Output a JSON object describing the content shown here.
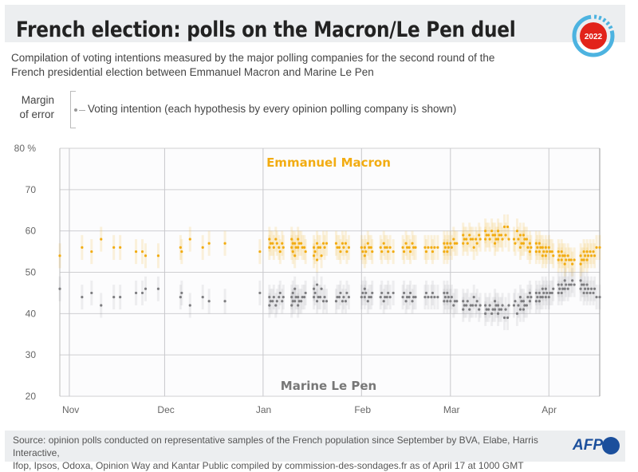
{
  "header": {
    "title": "French election: polls on the Macron/Le Pen duel",
    "logo_text": "2022",
    "subtitle_line1": "Compilation of voting intentions measured by the major polling companies for the second round of the",
    "subtitle_line2": "French presidential election between Emmanuel Macron and Marine Le Pen"
  },
  "legend": {
    "margin_label_1": "Margin",
    "margin_label_2": "of error",
    "voting_intention": "Voting intention (each hypothesis by every opinion polling company is shown)"
  },
  "footer": {
    "source_line1": "Source: opinion polls conducted on representative samples of the French population since September by BVA, Elabe, Harris Interactive,",
    "source_line2": "Ifop, Ipsos, Odoxa, Opinion Way and Kantar Public compiled by commission-des-sondages.fr as of April 17 at 1000 GMT",
    "brand": "AFP"
  },
  "colors": {
    "macron": "#f2ac12",
    "lepen": "#7d7d80",
    "header_bg": "#eceef0",
    "logo_red": "#e2231a",
    "logo_blue": "#4db3e0",
    "afp_blue": "#1b4f9c"
  },
  "chart_data": {
    "type": "scatter",
    "title": "",
    "ylim": [
      20,
      80
    ],
    "yticks": [
      20,
      30,
      40,
      50,
      60,
      70,
      80
    ],
    "ytick_labels": [
      "20",
      "30",
      "40",
      "50",
      "60",
      "70",
      "80 %"
    ],
    "xlim": [
      "2021-10-29",
      "2022-04-17"
    ],
    "xticks": [
      "2021-11-01",
      "2021-12-01",
      "2022-01-01",
      "2022-02-01",
      "2022-03-01",
      "2022-04-01"
    ],
    "xtick_labels": [
      "Nov",
      "Dec",
      "Jan",
      "Feb",
      "Mar",
      "Apr"
    ],
    "grid": true,
    "margin_of_error": 3,
    "series_labels": {
      "macron": "Emmanuel Macron",
      "lepen": "Marine Le Pen"
    },
    "polls": [
      {
        "date": "2021-10-29",
        "macron": [
          54
        ]
      },
      {
        "date": "2021-11-05",
        "macron": [
          56
        ]
      },
      {
        "date": "2021-11-08",
        "macron": [
          55
        ]
      },
      {
        "date": "2021-11-11",
        "macron": [
          58
        ]
      },
      {
        "date": "2021-11-15",
        "macron": [
          56
        ]
      },
      {
        "date": "2021-11-17",
        "macron": [
          56
        ]
      },
      {
        "date": "2021-11-22",
        "macron": [
          55
        ]
      },
      {
        "date": "2021-11-24",
        "macron": [
          55
        ]
      },
      {
        "date": "2021-11-25",
        "macron": [
          54
        ]
      },
      {
        "date": "2021-11-29",
        "macron": [
          54
        ]
      },
      {
        "date": "2021-12-06",
        "macron": [
          56,
          55
        ]
      },
      {
        "date": "2021-12-09",
        "macron": [
          58
        ]
      },
      {
        "date": "2021-12-13",
        "macron": [
          56
        ]
      },
      {
        "date": "2021-12-15",
        "macron": [
          57
        ]
      },
      {
        "date": "2021-12-20",
        "macron": [
          57
        ]
      },
      {
        "date": "2021-12-31",
        "macron": [
          55
        ]
      },
      {
        "date": "2022-01-03",
        "macron": [
          58,
          57,
          56
        ]
      },
      {
        "date": "2022-01-04",
        "macron": [
          57,
          56
        ]
      },
      {
        "date": "2022-01-05",
        "macron": [
          58,
          57
        ]
      },
      {
        "date": "2022-01-06",
        "macron": [
          56,
          55
        ]
      },
      {
        "date": "2022-01-07",
        "macron": [
          57,
          56
        ]
      },
      {
        "date": "2022-01-10",
        "macron": [
          58,
          57,
          56,
          55
        ]
      },
      {
        "date": "2022-01-11",
        "macron": [
          57,
          56,
          54
        ]
      },
      {
        "date": "2022-01-12",
        "macron": [
          58,
          57,
          56
        ]
      },
      {
        "date": "2022-01-13",
        "macron": [
          57,
          56
        ]
      },
      {
        "date": "2022-01-14",
        "macron": [
          56,
          55
        ]
      },
      {
        "date": "2022-01-17",
        "macron": [
          56,
          55,
          54
        ]
      },
      {
        "date": "2022-01-18",
        "macron": [
          57,
          56,
          53
        ]
      },
      {
        "date": "2022-01-19",
        "macron": [
          56,
          54
        ]
      },
      {
        "date": "2022-01-20",
        "macron": [
          57,
          56
        ]
      },
      {
        "date": "2022-01-21",
        "macron": [
          57
        ]
      },
      {
        "date": "2022-01-24",
        "macron": [
          57,
          56
        ]
      },
      {
        "date": "2022-01-25",
        "macron": [
          56,
          55
        ]
      },
      {
        "date": "2022-01-26",
        "macron": [
          57,
          56
        ]
      },
      {
        "date": "2022-01-27",
        "macron": [
          57,
          55
        ]
      },
      {
        "date": "2022-01-28",
        "macron": [
          56
        ]
      },
      {
        "date": "2022-02-01",
        "macron": [
          56,
          55
        ]
      },
      {
        "date": "2022-02-02",
        "macron": [
          56,
          55,
          54
        ]
      },
      {
        "date": "2022-02-03",
        "macron": [
          57,
          56
        ]
      },
      {
        "date": "2022-02-04",
        "macron": [
          56,
          55
        ]
      },
      {
        "date": "2022-02-07",
        "macron": [
          56,
          55
        ]
      },
      {
        "date": "2022-02-08",
        "macron": [
          57,
          56
        ]
      },
      {
        "date": "2022-02-09",
        "macron": [
          56,
          55
        ]
      },
      {
        "date": "2022-02-10",
        "macron": [
          56
        ]
      },
      {
        "date": "2022-02-11",
        "macron": [
          55
        ]
      },
      {
        "date": "2022-02-14",
        "macron": [
          56,
          55
        ]
      },
      {
        "date": "2022-02-15",
        "macron": [
          57,
          56
        ]
      },
      {
        "date": "2022-02-16",
        "macron": [
          56,
          55
        ]
      },
      {
        "date": "2022-02-17",
        "macron": [
          57,
          56
        ]
      },
      {
        "date": "2022-02-18",
        "macron": [
          56
        ]
      },
      {
        "date": "2022-02-21",
        "macron": [
          56,
          55
        ]
      },
      {
        "date": "2022-02-22",
        "macron": [
          56
        ]
      },
      {
        "date": "2022-02-23",
        "macron": [
          56,
          55
        ]
      },
      {
        "date": "2022-02-24",
        "macron": [
          56
        ]
      },
      {
        "date": "2022-02-25",
        "macron": [
          56
        ]
      },
      {
        "date": "2022-02-27",
        "macron": [
          57,
          56,
          55
        ]
      },
      {
        "date": "2022-02-28",
        "macron": [
          57,
          56,
          55
        ]
      },
      {
        "date": "2022-03-01",
        "macron": [
          57,
          56
        ]
      },
      {
        "date": "2022-03-02",
        "macron": [
          58,
          57
        ]
      },
      {
        "date": "2022-03-03",
        "macron": [
          57
        ]
      },
      {
        "date": "2022-03-05",
        "macron": [
          59,
          58,
          57
        ]
      },
      {
        "date": "2022-03-06",
        "macron": [
          58,
          57
        ]
      },
      {
        "date": "2022-03-07",
        "macron": [
          59,
          58
        ]
      },
      {
        "date": "2022-03-08",
        "macron": [
          58,
          56
        ]
      },
      {
        "date": "2022-03-09",
        "macron": [
          58,
          57
        ]
      },
      {
        "date": "2022-03-10",
        "macron": [
          59,
          58
        ]
      },
      {
        "date": "2022-03-12",
        "macron": [
          60,
          59,
          58
        ]
      },
      {
        "date": "2022-03-13",
        "macron": [
          59,
          58
        ]
      },
      {
        "date": "2022-03-14",
        "macron": [
          60,
          59
        ]
      },
      {
        "date": "2022-03-15",
        "macron": [
          59,
          58,
          57
        ]
      },
      {
        "date": "2022-03-16",
        "macron": [
          60,
          59,
          58
        ]
      },
      {
        "date": "2022-03-17",
        "macron": [
          59,
          58
        ]
      },
      {
        "date": "2022-03-18",
        "macron": [
          61,
          59
        ]
      },
      {
        "date": "2022-03-19",
        "macron": [
          61,
          58
        ]
      },
      {
        "date": "2022-03-21",
        "macron": [
          58,
          57
        ]
      },
      {
        "date": "2022-03-22",
        "macron": [
          60,
          58
        ]
      },
      {
        "date": "2022-03-23",
        "macron": [
          59,
          57,
          56
        ]
      },
      {
        "date": "2022-03-24",
        "macron": [
          59,
          58,
          57
        ]
      },
      {
        "date": "2022-03-25",
        "macron": [
          58,
          56
        ]
      },
      {
        "date": "2022-03-26",
        "macron": [
          57,
          56,
          55
        ]
      },
      {
        "date": "2022-03-28",
        "macron": [
          57,
          56,
          55
        ]
      },
      {
        "date": "2022-03-29",
        "macron": [
          57,
          56,
          55
        ]
      },
      {
        "date": "2022-03-30",
        "macron": [
          56,
          55,
          54
        ]
      },
      {
        "date": "2022-03-31",
        "macron": [
          56,
          55,
          54
        ]
      },
      {
        "date": "2022-04-01",
        "macron": [
          56,
          55
        ]
      },
      {
        "date": "2022-04-02",
        "macron": [
          55,
          54
        ]
      },
      {
        "date": "2022-04-04",
        "macron": [
          55,
          54,
          53
        ]
      },
      {
        "date": "2022-04-05",
        "macron": [
          55,
          54,
          53
        ]
      },
      {
        "date": "2022-04-06",
        "macron": [
          54,
          53,
          52
        ]
      },
      {
        "date": "2022-04-07",
        "macron": [
          54,
          53
        ]
      },
      {
        "date": "2022-04-08",
        "macron": [
          53,
          52
        ]
      },
      {
        "date": "2022-04-09",
        "macron": [
          53
        ]
      },
      {
        "date": "2022-04-11",
        "macron": [
          54,
          53,
          52
        ]
      },
      {
        "date": "2022-04-12",
        "macron": [
          55,
          54,
          53
        ]
      },
      {
        "date": "2022-04-13",
        "macron": [
          55,
          54,
          53
        ]
      },
      {
        "date": "2022-04-14",
        "macron": [
          55,
          54
        ]
      },
      {
        "date": "2022-04-15",
        "macron": [
          55,
          54
        ]
      },
      {
        "date": "2022-04-16",
        "macron": [
          56
        ]
      },
      {
        "date": "2022-04-17",
        "macron": [
          56
        ]
      }
    ],
    "lepen_note_rule": "complement"
  }
}
